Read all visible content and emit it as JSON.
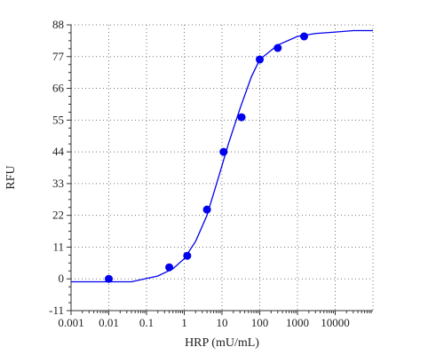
{
  "chart_data": {
    "type": "scatter",
    "xlabel": "HRP (mU/mL)",
    "ylabel": "RFU",
    "x_scale": "log",
    "xlim": [
      0.001,
      100000
    ],
    "ylim": [
      -11,
      88
    ],
    "x_ticks": [
      {
        "value": 0.001,
        "label": "0.001"
      },
      {
        "value": 0.01,
        "label": "0.01"
      },
      {
        "value": 0.1,
        "label": "0.1"
      },
      {
        "value": 1,
        "label": "1"
      },
      {
        "value": 10,
        "label": "10"
      },
      {
        "value": 100,
        "label": "100"
      },
      {
        "value": 1000,
        "label": "1000"
      },
      {
        "value": 10000,
        "label": "10000"
      }
    ],
    "y_ticks": [
      {
        "value": -11,
        "label": "-11"
      },
      {
        "value": 0,
        "label": "0"
      },
      {
        "value": 11,
        "label": "11"
      },
      {
        "value": 22,
        "label": "22"
      },
      {
        "value": 33,
        "label": "33"
      },
      {
        "value": 44,
        "label": "44"
      },
      {
        "value": 55,
        "label": "55"
      },
      {
        "value": 66,
        "label": "66"
      },
      {
        "value": 77,
        "label": "77"
      },
      {
        "value": 88,
        "label": "88"
      }
    ],
    "grid": true,
    "series": [
      {
        "type": "scatter",
        "color": "#0000ee",
        "points": [
          {
            "x": 0.01,
            "y": 0
          },
          {
            "x": 0.4,
            "y": 4
          },
          {
            "x": 1.2,
            "y": 8
          },
          {
            "x": 4,
            "y": 24
          },
          {
            "x": 11,
            "y": 44
          },
          {
            "x": 33,
            "y": 56
          },
          {
            "x": 100,
            "y": 76
          },
          {
            "x": 300,
            "y": 80
          },
          {
            "x": 1500,
            "y": 84
          }
        ]
      },
      {
        "type": "line",
        "color": "#0000ee",
        "points": [
          {
            "x": 0.001,
            "y": -1
          },
          {
            "x": 0.04,
            "y": -1
          },
          {
            "x": 0.2,
            "y": 1
          },
          {
            "x": 0.5,
            "y": 3.5
          },
          {
            "x": 1,
            "y": 7
          },
          {
            "x": 2,
            "y": 13
          },
          {
            "x": 4,
            "y": 22
          },
          {
            "x": 8,
            "y": 35
          },
          {
            "x": 15,
            "y": 47
          },
          {
            "x": 30,
            "y": 59
          },
          {
            "x": 60,
            "y": 70
          },
          {
            "x": 100,
            "y": 76
          },
          {
            "x": 300,
            "y": 81
          },
          {
            "x": 1000,
            "y": 84
          },
          {
            "x": 3000,
            "y": 85
          },
          {
            "x": 10000,
            "y": 85.5
          },
          {
            "x": 30000,
            "y": 86
          },
          {
            "x": 100000,
            "y": 86
          }
        ]
      }
    ]
  }
}
